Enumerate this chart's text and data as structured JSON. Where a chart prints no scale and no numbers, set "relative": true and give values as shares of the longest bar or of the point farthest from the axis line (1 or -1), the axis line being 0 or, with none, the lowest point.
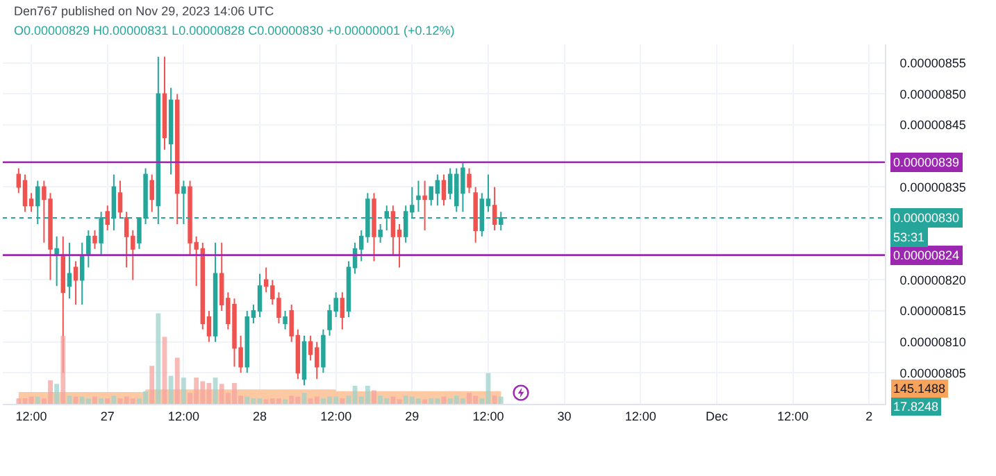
{
  "chart_data": [
    {
      "type": "candlestick",
      "annotations": [
        "Den767 published on Nov 29, 2023 14:06 UTC",
        "O0.00000829 H0.00000831 L0.00000828 C0.00000830 +0.00000001 (+0.12%)",
        "53:31"
      ],
      "x": [
        "2023-11-26T10:00",
        "2023-11-26T11:00",
        "2023-11-26T12:00",
        "2023-11-26T13:00",
        "2023-11-26T14:00",
        "2023-11-26T15:00",
        "2023-11-26T16:00",
        "2023-11-26T17:00",
        "2023-11-26T18:00",
        "2023-11-26T19:00",
        "2023-11-26T20:00",
        "2023-11-26T21:00",
        "2023-11-26T22:00",
        "2023-11-26T23:00",
        "2023-11-27T00:00",
        "2023-11-27T01:00",
        "2023-11-27T02:00",
        "2023-11-27T03:00",
        "2023-11-27T04:00",
        "2023-11-27T05:00",
        "2023-11-27T06:00",
        "2023-11-27T07:00",
        "2023-11-27T08:00",
        "2023-11-27T09:00",
        "2023-11-27T10:00",
        "2023-11-27T11:00",
        "2023-11-27T12:00",
        "2023-11-27T13:00",
        "2023-11-27T14:00",
        "2023-11-27T15:00",
        "2023-11-27T16:00",
        "2023-11-27T17:00",
        "2023-11-27T18:00",
        "2023-11-27T19:00",
        "2023-11-27T20:00",
        "2023-11-27T21:00",
        "2023-11-27T22:00",
        "2023-11-27T23:00",
        "2023-11-28T00:00",
        "2023-11-28T01:00",
        "2023-11-28T02:00",
        "2023-11-28T03:00",
        "2023-11-28T04:00",
        "2023-11-28T05:00",
        "2023-11-28T06:00",
        "2023-11-28T07:00",
        "2023-11-28T08:00",
        "2023-11-28T09:00",
        "2023-11-28T10:00",
        "2023-11-28T11:00",
        "2023-11-28T12:00",
        "2023-11-28T13:00",
        "2023-11-28T14:00",
        "2023-11-28T15:00",
        "2023-11-28T16:00",
        "2023-11-28T17:00",
        "2023-11-28T18:00",
        "2023-11-28T19:00",
        "2023-11-28T20:00",
        "2023-11-28T21:00",
        "2023-11-28T22:00",
        "2023-11-28T23:00",
        "2023-11-29T00:00",
        "2023-11-29T01:00",
        "2023-11-29T02:00",
        "2023-11-29T03:00",
        "2023-11-29T04:00",
        "2023-11-29T05:00",
        "2023-11-29T06:00",
        "2023-11-29T07:00",
        "2023-11-29T08:00",
        "2023-11-29T09:00",
        "2023-11-29T10:00",
        "2023-11-29T11:00",
        "2023-11-29T12:00",
        "2023-11-29T13:00",
        "2023-11-29T14:00"
      ],
      "ohlc": [
        [
          8.37e-06,
          8.38e-06,
          8.34e-06,
          8.35e-06
        ],
        [
          8.36e-06,
          8.37e-06,
          8.31e-06,
          8.32e-06
        ],
        [
          8.33e-06,
          8.34e-06,
          8.31e-06,
          8.32e-06
        ],
        [
          8.32e-06,
          8.36e-06,
          8.29e-06,
          8.35e-06
        ],
        [
          8.35e-06,
          8.36e-06,
          8.26e-06,
          8.33e-06
        ],
        [
          8.33e-06,
          8.34e-06,
          8.2e-06,
          8.25e-06
        ],
        [
          8.24e-06,
          8.27e-06,
          8.19e-06,
          8.25e-06
        ],
        [
          8.24e-06,
          8.27e-06,
          8.05e-06,
          8.18e-06
        ],
        [
          8.19e-06,
          8.26e-06,
          8.17e-06,
          8.21e-06
        ],
        [
          8.22e-06,
          8.23e-06,
          8.16e-06,
          8.2e-06
        ],
        [
          8.2e-06,
          8.26e-06,
          8.16e-06,
          8.24e-06
        ],
        [
          8.24e-06,
          8.28e-06,
          8.22e-06,
          8.27e-06
        ],
        [
          8.27e-06,
          8.28e-06,
          8.25e-06,
          8.26e-06
        ],
        [
          8.26e-06,
          8.31e-06,
          8.24e-06,
          8.3e-06
        ],
        [
          8.31e-06,
          8.32e-06,
          8.28e-06,
          8.29e-06
        ],
        [
          8.3e-06,
          8.37e-06,
          8.28e-06,
          8.35e-06
        ],
        [
          8.34e-06,
          8.36e-06,
          8.3e-06,
          8.31e-06
        ],
        [
          8.3e-06,
          8.31e-06,
          8.22e-06,
          8.27e-06
        ],
        [
          8.27e-06,
          8.28e-06,
          8.2e-06,
          8.25e-06
        ],
        [
          8.26e-06,
          8.3e-06,
          8.25e-06,
          8.3e-06
        ],
        [
          8.3e-06,
          8.38e-06,
          8.29e-06,
          8.37e-06
        ],
        [
          8.36e-06,
          8.37e-06,
          8.31e-06,
          8.33e-06
        ],
        [
          8.32e-06,
          8.56e-06,
          8.29e-06,
          8.5e-06
        ],
        [
          8.5e-06,
          8.56e-06,
          8.41e-06,
          8.43e-06
        ],
        [
          8.42e-06,
          8.51e-06,
          8.37e-06,
          8.49e-06
        ],
        [
          8.49e-06,
          8.5e-06,
          8.29e-06,
          8.34e-06
        ],
        [
          8.34e-06,
          8.36e-06,
          8.29e-06,
          8.35e-06
        ],
        [
          8.35e-06,
          8.36e-06,
          8.24e-06,
          8.26e-06
        ],
        [
          8.26e-06,
          8.27e-06,
          8.19e-06,
          8.25e-06
        ],
        [
          8.25e-06,
          8.26e-06,
          8.12e-06,
          8.13e-06
        ],
        [
          8.14e-06,
          8.15e-06,
          8.1e-06,
          8.11e-06
        ],
        [
          8.11e-06,
          8.26e-06,
          8.1e-06,
          8.21e-06
        ],
        [
          8.21e-06,
          8.26e-06,
          8.15e-06,
          8.16e-06
        ],
        [
          8.17e-06,
          8.18e-06,
          8.12e-06,
          8.13e-06
        ],
        [
          8.16e-06,
          8.17e-06,
          8.06e-06,
          8.09e-06
        ],
        [
          8.09e-06,
          8.11e-06,
          8.05e-06,
          8.06e-06
        ],
        [
          8.06e-06,
          8.15e-06,
          8.05e-06,
          8.14e-06
        ],
        [
          8.14e-06,
          8.16e-06,
          8.13e-06,
          8.15e-06
        ],
        [
          8.15e-06,
          8.21e-06,
          8.14e-06,
          8.19e-06
        ],
        [
          8.2e-06,
          8.22e-06,
          8.18e-06,
          8.19e-06
        ],
        [
          8.19e-06,
          8.2e-06,
          8.16e-06,
          8.17e-06
        ],
        [
          8.17e-06,
          8.18e-06,
          8.13e-06,
          8.14e-06
        ],
        [
          8.13e-06,
          8.15e-06,
          8.12e-06,
          8.14e-06
        ],
        [
          8.15e-06,
          8.16e-06,
          8.1e-06,
          8.11e-06
        ],
        [
          8.11e-06,
          8.12e-06,
          8.04e-06,
          8.05e-06
        ],
        [
          8.04e-06,
          8.11e-06,
          8.03e-06,
          8.1e-06
        ],
        [
          8.1e-06,
          8.11e-06,
          8.07e-06,
          8.08e-06
        ],
        [
          8.09e-06,
          8.1e-06,
          8.04e-06,
          8.06e-06
        ],
        [
          8.06e-06,
          8.12e-06,
          8.05e-06,
          8.11e-06
        ],
        [
          8.12e-06,
          8.16e-06,
          8.11e-06,
          8.15e-06
        ],
        [
          8.15e-06,
          8.18e-06,
          8.14e-06,
          8.17e-06
        ],
        [
          8.17e-06,
          8.18e-06,
          8.12e-06,
          8.14e-06
        ],
        [
          8.15e-06,
          8.23e-06,
          8.14e-06,
          8.22e-06
        ],
        [
          8.22e-06,
          8.26e-06,
          8.21e-06,
          8.25e-06
        ],
        [
          8.25e-06,
          8.28e-06,
          8.23e-06,
          8.27e-06
        ],
        [
          8.27e-06,
          8.34e-06,
          8.26e-06,
          8.33e-06
        ],
        [
          8.33e-06,
          8.34e-06,
          8.23e-06,
          8.27e-06
        ],
        [
          8.27e-06,
          8.29e-06,
          8.26e-06,
          8.28e-06
        ],
        [
          8.3e-06,
          8.32e-06,
          8.28e-06,
          8.31e-06
        ],
        [
          8.31e-06,
          8.32e-06,
          8.24e-06,
          8.27e-06
        ],
        [
          8.28e-06,
          8.29e-06,
          8.22e-06,
          8.27e-06
        ],
        [
          8.27e-06,
          8.32e-06,
          8.26e-06,
          8.31e-06
        ],
        [
          8.31e-06,
          8.35e-06,
          8.3e-06,
          8.32e-06
        ],
        [
          8.33e-06,
          8.36e-06,
          8.31e-06,
          8.335e-06
        ],
        [
          8.335e-06,
          8.36e-06,
          8.28e-06,
          8.33e-06
        ],
        [
          8.33e-06,
          8.35e-06,
          8.32e-06,
          8.35e-06
        ],
        [
          8.34e-06,
          8.37e-06,
          8.32e-06,
          8.36e-06
        ],
        [
          8.36e-06,
          8.37e-06,
          8.32e-06,
          8.33e-06
        ],
        [
          8.34e-06,
          8.38e-06,
          8.33e-06,
          8.37e-06
        ],
        [
          8.32e-06,
          8.38e-06,
          8.31e-06,
          8.37e-06
        ],
        [
          8.34e-06,
          8.39e-06,
          8.31e-06,
          8.38e-06
        ],
        [
          8.37e-06,
          8.38e-06,
          8.34e-06,
          8.35e-06
        ],
        [
          8.34e-06,
          8.35e-06,
          8.26e-06,
          8.28e-06
        ],
        [
          8.28e-06,
          8.34e-06,
          8.27e-06,
          8.33e-06
        ],
        [
          8.32e-06,
          8.37e-06,
          8.31e-06,
          8.33e-06
        ],
        [
          8.32e-06,
          8.35e-06,
          8.28e-06,
          8.29e-06
        ],
        [
          8.29e-06,
          8.31e-06,
          8.28e-06,
          8.3e-06
        ]
      ],
      "colors": [
        "#ef5350",
        "#ef5350",
        "#ef5350",
        "#26a69a",
        "#ef5350",
        "#ef5350",
        "#26a69a",
        "#ef5350",
        "#26a69a",
        "#ef5350",
        "#26a69a",
        "#26a69a",
        "#ef5350",
        "#26a69a",
        "#ef5350",
        "#26a69a",
        "#ef5350",
        "#ef5350",
        "#ef5350",
        "#26a69a",
        "#26a69a",
        "#ef5350",
        "#26a69a",
        "#ef5350",
        "#26a69a",
        "#ef5350",
        "#26a69a",
        "#ef5350",
        "#ef5350",
        "#ef5350",
        "#ef5350",
        "#26a69a",
        "#ef5350",
        "#ef5350",
        "#ef5350",
        "#ef5350",
        "#26a69a",
        "#26a69a",
        "#26a69a",
        "#ef5350",
        "#ef5350",
        "#ef5350",
        "#26a69a",
        "#ef5350",
        "#ef5350",
        "#26a69a",
        "#ef5350",
        "#ef5350",
        "#26a69a",
        "#26a69a",
        "#26a69a",
        "#ef5350",
        "#26a69a",
        "#26a69a",
        "#26a69a",
        "#26a69a",
        "#ef5350",
        "#26a69a",
        "#26a69a",
        "#ef5350",
        "#ef5350",
        "#26a69a",
        "#26a69a",
        "#26a69a",
        "#ef5350",
        "#26a69a",
        "#26a69a",
        "#ef5350",
        "#26a69a",
        "#26a69a",
        "#26a69a",
        "#ef5350",
        "#ef5350",
        "#26a69a",
        "#26a69a",
        "#ef5350",
        "#26a69a"
      ],
      "xlim": [
        "2023-11-26T07:30",
        "2023-12-02T02:30"
      ],
      "xticks": [
        {
          "value": "2023-11-26T12:00",
          "label": "12:00"
        },
        {
          "value": "2023-11-27T00:00",
          "label": "27"
        },
        {
          "value": "2023-11-27T12:00",
          "label": "12:00"
        },
        {
          "value": "2023-11-28T00:00",
          "label": "28"
        },
        {
          "value": "2023-11-28T12:00",
          "label": "12:00"
        },
        {
          "value": "2023-11-29T00:00",
          "label": "29"
        },
        {
          "value": "2023-11-29T12:00",
          "label": "12:00"
        },
        {
          "value": "2023-11-30T00:00",
          "label": "30"
        },
        {
          "value": "2023-11-30T12:00",
          "label": "12:00"
        },
        {
          "value": "2023-12-01T00:00",
          "label": "Dec"
        },
        {
          "value": "2023-12-01T12:00",
          "label": "12:00"
        },
        {
          "value": "2023-12-02T00:00",
          "label": "2"
        }
      ],
      "ylim": [
        8e-06,
        8.58e-06
      ],
      "yticks": [
        {
          "value": 8.05e-06,
          "label": "0.00000805"
        },
        {
          "value": 8.1e-06,
          "label": "0.00000810"
        },
        {
          "value": 8.15e-06,
          "label": "0.00000815"
        },
        {
          "value": 8.2e-06,
          "label": "0.00000820"
        },
        {
          "value": 8.35e-06,
          "label": "0.00000835"
        },
        {
          "value": 8.45e-06,
          "label": "0.00000845"
        },
        {
          "value": 8.5e-06,
          "label": "0.00000850"
        },
        {
          "value": 8.55e-06,
          "label": "0.00000855"
        }
      ],
      "ref_lines": [
        {
          "axis": "y",
          "value": 8.39e-06,
          "label": "0.00000839",
          "color": "#9c27b0",
          "line_style": "solid"
        },
        {
          "axis": "y",
          "value": 8.24e-06,
          "label": "0.00000824",
          "color": "#9c27b0",
          "line_style": "solid"
        },
        {
          "axis": "y",
          "value": 8.3e-06,
          "label": "0.00000830",
          "color": "#26a69a",
          "line_style": "dotted"
        }
      ],
      "grid": true,
      "legend": false
    },
    {
      "type": "bar",
      "relative": true,
      "annotations": [
        "145.1488",
        "17.8248"
      ],
      "x": [
        "2023-11-26T10:00",
        "2023-11-26T11:00",
        "2023-11-26T12:00",
        "2023-11-26T13:00",
        "2023-11-26T14:00",
        "2023-11-26T15:00",
        "2023-11-26T16:00",
        "2023-11-26T17:00",
        "2023-11-26T18:00",
        "2023-11-26T19:00",
        "2023-11-26T20:00",
        "2023-11-26T21:00",
        "2023-11-26T22:00",
        "2023-11-26T23:00",
        "2023-11-27T00:00",
        "2023-11-27T01:00",
        "2023-11-27T02:00",
        "2023-11-27T03:00",
        "2023-11-27T04:00",
        "2023-11-27T05:00",
        "2023-11-27T06:00",
        "2023-11-27T07:00",
        "2023-11-27T08:00",
        "2023-11-27T09:00",
        "2023-11-27T10:00",
        "2023-11-27T11:00",
        "2023-11-27T12:00",
        "2023-11-27T13:00",
        "2023-11-27T14:00",
        "2023-11-27T15:00",
        "2023-11-27T16:00",
        "2023-11-27T17:00",
        "2023-11-27T18:00",
        "2023-11-27T19:00",
        "2023-11-27T20:00",
        "2023-11-27T21:00",
        "2023-11-27T22:00",
        "2023-11-27T23:00",
        "2023-11-28T00:00",
        "2023-11-28T01:00",
        "2023-11-28T02:00",
        "2023-11-28T03:00",
        "2023-11-28T04:00",
        "2023-11-28T05:00",
        "2023-11-28T06:00",
        "2023-11-28T07:00",
        "2023-11-28T08:00",
        "2023-11-28T09:00",
        "2023-11-28T10:00",
        "2023-11-28T11:00",
        "2023-11-28T12:00",
        "2023-11-28T13:00",
        "2023-11-28T14:00",
        "2023-11-28T15:00",
        "2023-11-28T16:00",
        "2023-11-28T17:00",
        "2023-11-28T18:00",
        "2023-11-28T19:00",
        "2023-11-28T20:00",
        "2023-11-28T21:00",
        "2023-11-28T22:00",
        "2023-11-28T23:00",
        "2023-11-29T00:00",
        "2023-11-29T01:00",
        "2023-11-29T02:00",
        "2023-11-29T03:00",
        "2023-11-29T04:00",
        "2023-11-29T05:00",
        "2023-11-29T06:00",
        "2023-11-29T07:00",
        "2023-11-29T08:00",
        "2023-11-29T09:00",
        "2023-11-29T10:00",
        "2023-11-29T11:00",
        "2023-11-29T12:00",
        "2023-11-29T13:00",
        "2023-11-29T14:00"
      ],
      "xlim": [
        "2023-11-26T07:30",
        "2023-12-02T02:30"
      ],
      "series": [
        {
          "type": "area",
          "color": "#fcc9a3",
          "values": [
            0.13,
            0.13,
            0.13,
            0.13,
            0.13,
            0.13,
            0.13,
            0.13,
            0.13,
            0.13,
            0.13,
            0.13,
            0.13,
            0.13,
            0.13,
            0.13,
            0.13,
            0.13,
            0.13,
            0.13,
            0.16,
            0.16,
            0.16,
            0.16,
            0.16,
            0.16,
            0.16,
            0.16,
            0.16,
            0.16,
            0.16,
            0.16,
            0.16,
            0.16,
            0.16,
            0.16,
            0.16,
            0.16,
            0.16,
            0.16,
            0.16,
            0.16,
            0.16,
            0.16,
            0.16,
            0.16,
            0.16,
            0.16,
            0.16,
            0.16,
            0.14,
            0.14,
            0.14,
            0.14,
            0.14,
            0.14,
            0.14,
            0.14,
            0.14,
            0.14,
            0.14,
            0.14,
            0.14,
            0.14,
            0.14,
            0.14,
            0.14,
            0.14,
            0.14,
            0.14,
            0.14,
            0.14,
            0.14,
            0.14,
            0.14,
            0.14,
            0.14
          ]
        },
        {
          "type": "bar",
          "values": [
            0.06,
            0.06,
            0.08,
            0.08,
            0.06,
            0.26,
            0.22,
            0.75,
            0.09,
            0.08,
            0.08,
            0.06,
            0.08,
            0.06,
            0.06,
            0.09,
            0.06,
            0.08,
            0.06,
            0.06,
            0.14,
            0.42,
            1,
            0.74,
            0.31,
            0.51,
            0.29,
            0.12,
            0.29,
            0.25,
            0.23,
            0.29,
            0.22,
            0.12,
            0.23,
            0.09,
            0.08,
            0.06,
            0.06,
            0.05,
            0.06,
            0.06,
            0.05,
            0.09,
            0.08,
            0.12,
            0.06,
            0.08,
            0.06,
            0.08,
            0.08,
            0.06,
            0.09,
            0.2,
            0.08,
            0.2,
            0.15,
            0.09,
            0.06,
            0.08,
            0.05,
            0.09,
            0.08,
            0.06,
            0.05,
            0.06,
            0.06,
            0.08,
            0.06,
            0.09,
            0.06,
            0.12,
            0.09,
            0.06,
            0.34,
            0.09,
            0.08
          ],
          "colors": [
            "#f5a3a0",
            "#f5a3a0",
            "#f5a3a0",
            "#9ed2cc",
            "#f5a3a0",
            "#f5a3a0",
            "#9ed2cc",
            "#f5a3a0",
            "#9ed2cc",
            "#f5a3a0",
            "#9ed2cc",
            "#9ed2cc",
            "#f5a3a0",
            "#9ed2cc",
            "#f5a3a0",
            "#9ed2cc",
            "#f5a3a0",
            "#f5a3a0",
            "#f5a3a0",
            "#9ed2cc",
            "#9ed2cc",
            "#f5a3a0",
            "#9ed2cc",
            "#f5a3a0",
            "#9ed2cc",
            "#f5a3a0",
            "#9ed2cc",
            "#f5a3a0",
            "#f5a3a0",
            "#f5a3a0",
            "#f5a3a0",
            "#9ed2cc",
            "#f5a3a0",
            "#f5a3a0",
            "#f5a3a0",
            "#f5a3a0",
            "#9ed2cc",
            "#9ed2cc",
            "#9ed2cc",
            "#f5a3a0",
            "#f5a3a0",
            "#f5a3a0",
            "#9ed2cc",
            "#f5a3a0",
            "#f5a3a0",
            "#9ed2cc",
            "#f5a3a0",
            "#f5a3a0",
            "#9ed2cc",
            "#9ed2cc",
            "#9ed2cc",
            "#f5a3a0",
            "#9ed2cc",
            "#9ed2cc",
            "#9ed2cc",
            "#9ed2cc",
            "#f5a3a0",
            "#9ed2cc",
            "#9ed2cc",
            "#f5a3a0",
            "#f5a3a0",
            "#9ed2cc",
            "#9ed2cc",
            "#9ed2cc",
            "#f5a3a0",
            "#9ed2cc",
            "#9ed2cc",
            "#f5a3a0",
            "#9ed2cc",
            "#9ed2cc",
            "#9ed2cc",
            "#f5a3a0",
            "#f5a3a0",
            "#9ed2cc",
            "#9ed2cc",
            "#f5a3a0",
            "#9ed2cc"
          ]
        }
      ],
      "legend": false
    }
  ]
}
